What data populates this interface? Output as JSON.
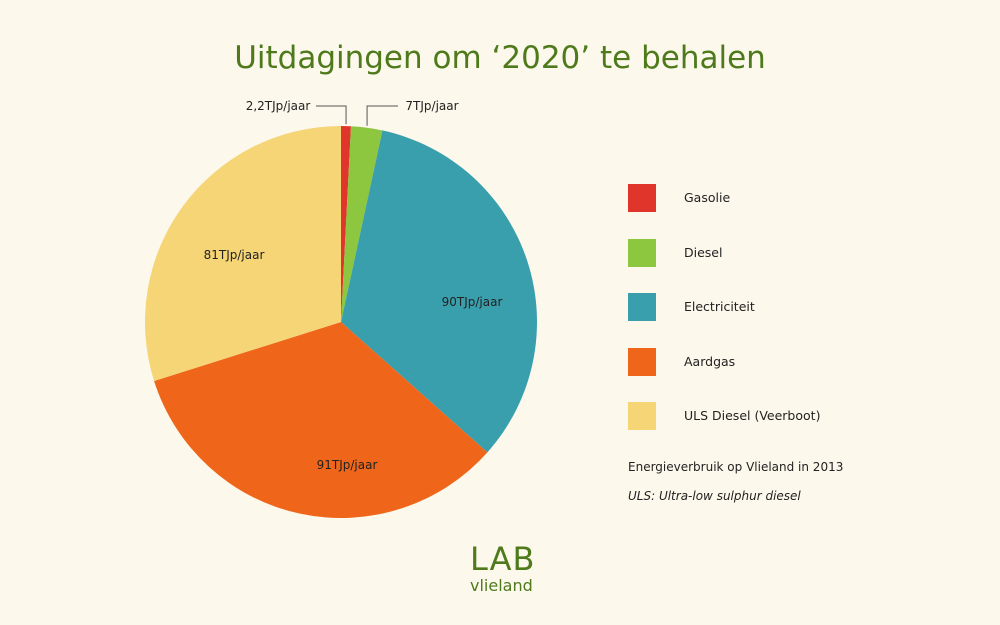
{
  "colors": {
    "title": "#4e7a1c",
    "background": "#fdf8ec",
    "gasolie": "#e0352b",
    "diesel": "#8dc63f",
    "elektriciteit": "#3a9fac",
    "aardgas": "#ef6519",
    "uls_diesel": "#f5d576"
  },
  "logo": {
    "text": "LAB",
    "subtext": "vlieland"
  },
  "notes": {
    "source": "Energieverbruik op Vlieland in 2013",
    "uls_definition": "ULS: Ultra-low sulphur diesel"
  },
  "chart_data": {
    "type": "pie",
    "title": "Uitdagingen om ‘2020’ te behalen",
    "start_angle_deg": 0,
    "direction": "clockwise",
    "legend_position": "right",
    "slices": [
      {
        "name": "Gasolie",
        "value": 2.2,
        "label": "2,2TJp/jaar",
        "color": "#e0352b"
      },
      {
        "name": "Diesel",
        "value": 7,
        "label": "7TJp/jaar",
        "color": "#8dc63f"
      },
      {
        "name": "Electriciteit",
        "value": 90,
        "label": "90TJp/jaar",
        "color": "#3a9fac"
      },
      {
        "name": "Aardgas",
        "value": 91,
        "label": "91TJp/jaar",
        "color": "#ef6519"
      },
      {
        "name": "ULS Diesel (Veerboot)",
        "value": 81,
        "label": "81TJp/jaar",
        "color": "#f5d576"
      }
    ]
  }
}
